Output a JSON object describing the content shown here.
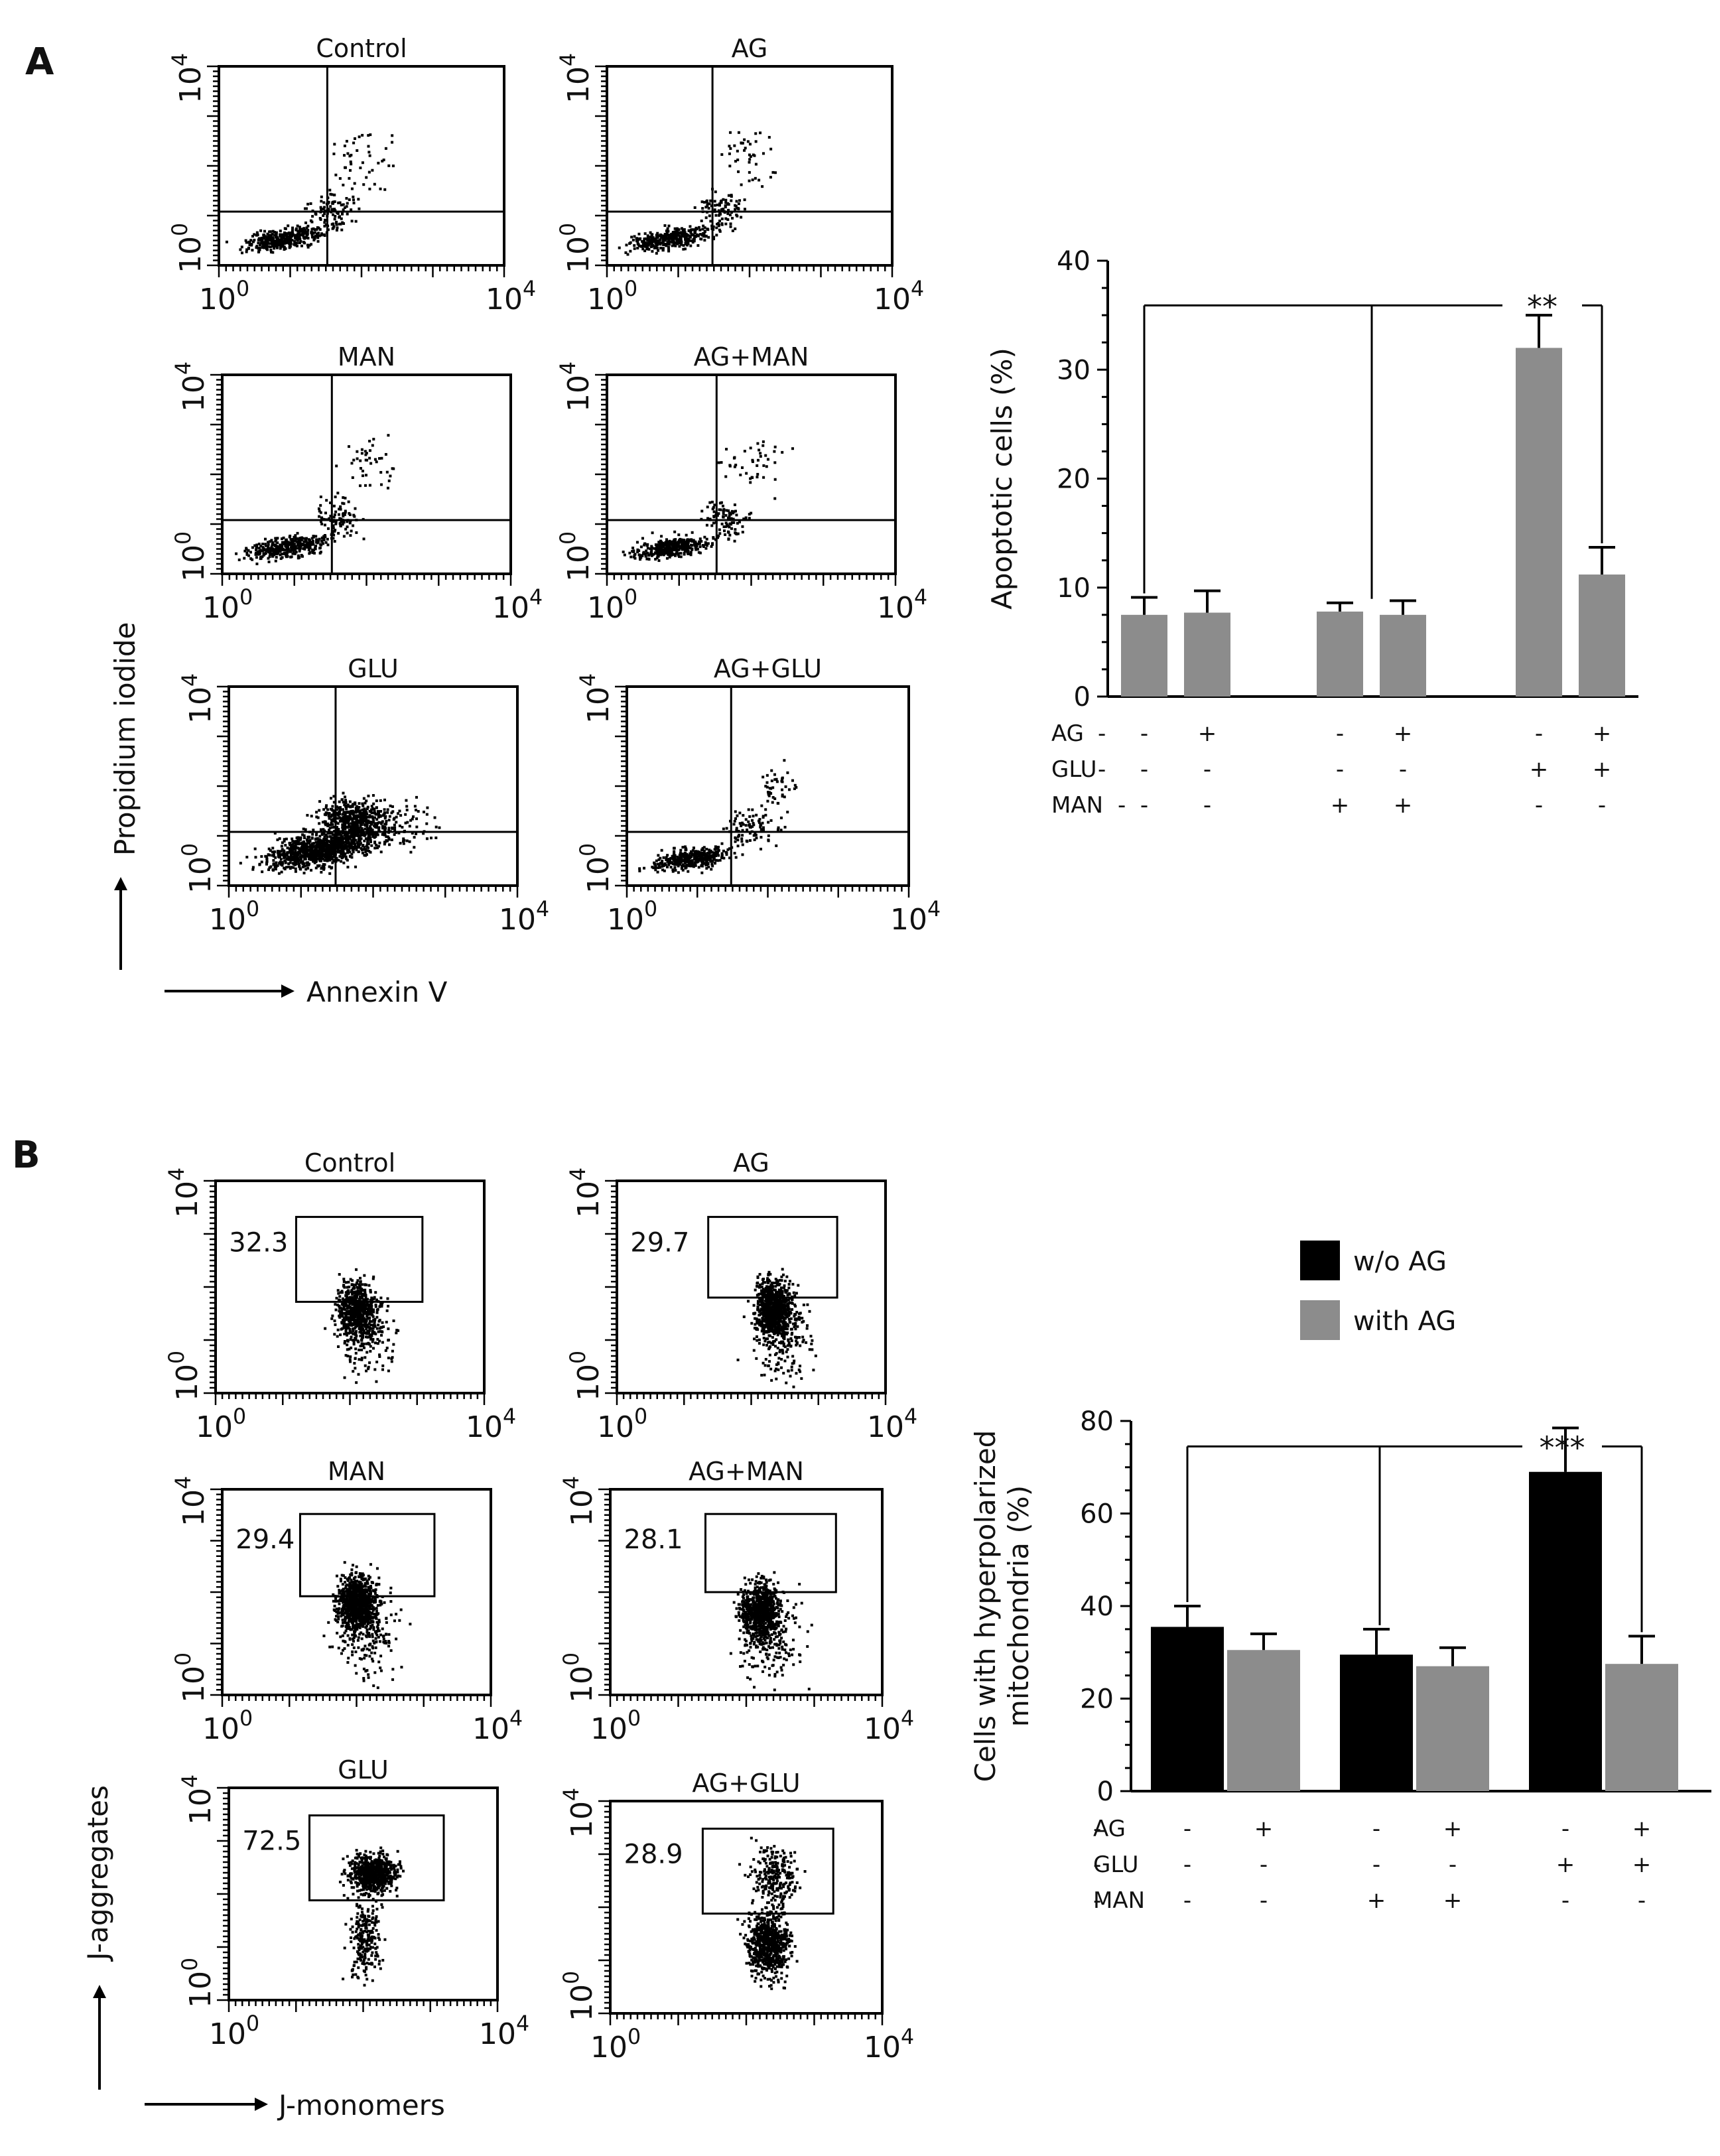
{
  "panel_labels": {
    "a": "A",
    "b": "B"
  },
  "panel_a": {
    "axis_labels": {
      "y": "Propidium iodide",
      "x": "Annexin V"
    },
    "tick_low": "10",
    "tick_high": "10",
    "exp_low": "0",
    "exp_high": "4",
    "plots": [
      {
        "title": "Control"
      },
      {
        "title": "AG"
      },
      {
        "title": "MAN"
      },
      {
        "title": "AG+MAN"
      },
      {
        "title": "GLU"
      },
      {
        "title": "AG+GLU"
      }
    ]
  },
  "panel_b": {
    "axis_labels": {
      "y": "J-aggregates",
      "x": "J-monomers"
    },
    "tick_low": "10",
    "tick_high": "10",
    "exp_low": "0",
    "exp_high": "4",
    "plots": [
      {
        "title": "Control",
        "gate_value": "32.3"
      },
      {
        "title": "AG",
        "gate_value": "29.7"
      },
      {
        "title": "MAN",
        "gate_value": "29.4"
      },
      {
        "title": "AG+MAN",
        "gate_value": "28.1"
      },
      {
        "title": "GLU",
        "gate_value": "72.5"
      },
      {
        "title": "AG+GLU",
        "gate_value": "28.9"
      }
    ]
  },
  "chart_data": [
    {
      "type": "bar",
      "id": "apoptosis",
      "title": "",
      "xlabel": "",
      "ylabel": "Apoptotic cells (%)",
      "ylim": [
        0,
        40
      ],
      "yticks": [
        0,
        10,
        20,
        30,
        40
      ],
      "bar_color": "#8c8c8c",
      "values": [
        7.5,
        7.7,
        7.8,
        7.5,
        32,
        11.2
      ],
      "errors": [
        1.6,
        2.0,
        0.8,
        1.3,
        3.0,
        2.5
      ],
      "condition_rows": [
        {
          "label": "AG",
          "marks": [
            "-",
            "+",
            "-",
            "+",
            "-",
            "+"
          ]
        },
        {
          "label": "GLU",
          "marks": [
            "-",
            "-",
            "-",
            "-",
            "+",
            "+"
          ]
        },
        {
          "label": "MAN",
          "marks": [
            "-",
            "-",
            "+",
            "+",
            "-",
            "-"
          ]
        }
      ],
      "significance": "**"
    },
    {
      "type": "bar",
      "id": "hyperpolarized",
      "title": "",
      "xlabel": "",
      "ylabel": [
        "Cells with hyperpolarized",
        "mitochondria (%)"
      ],
      "ylim": [
        0,
        80
      ],
      "yticks": [
        0,
        20,
        40,
        60,
        80
      ],
      "series": [
        {
          "name": "w/o AG",
          "color": "#000000"
        },
        {
          "name": "with AG",
          "color": "#8c8c8c"
        }
      ],
      "values": [
        35.5,
        30.5,
        29.5,
        27,
        69,
        27.5
      ],
      "errors": [
        4.5,
        3.5,
        5.5,
        4.0,
        9.5,
        6.0
      ],
      "condition_rows": [
        {
          "label": "AG",
          "marks": [
            "-",
            "+",
            "-",
            "+",
            "-",
            "+"
          ]
        },
        {
          "label": "GLU",
          "marks": [
            "-",
            "-",
            "-",
            "-",
            "+",
            "+"
          ]
        },
        {
          "label": "MAN",
          "marks": [
            "-",
            "-",
            "+",
            "+",
            "-",
            "-"
          ]
        }
      ],
      "significance": "***",
      "legend_position": "top"
    }
  ]
}
